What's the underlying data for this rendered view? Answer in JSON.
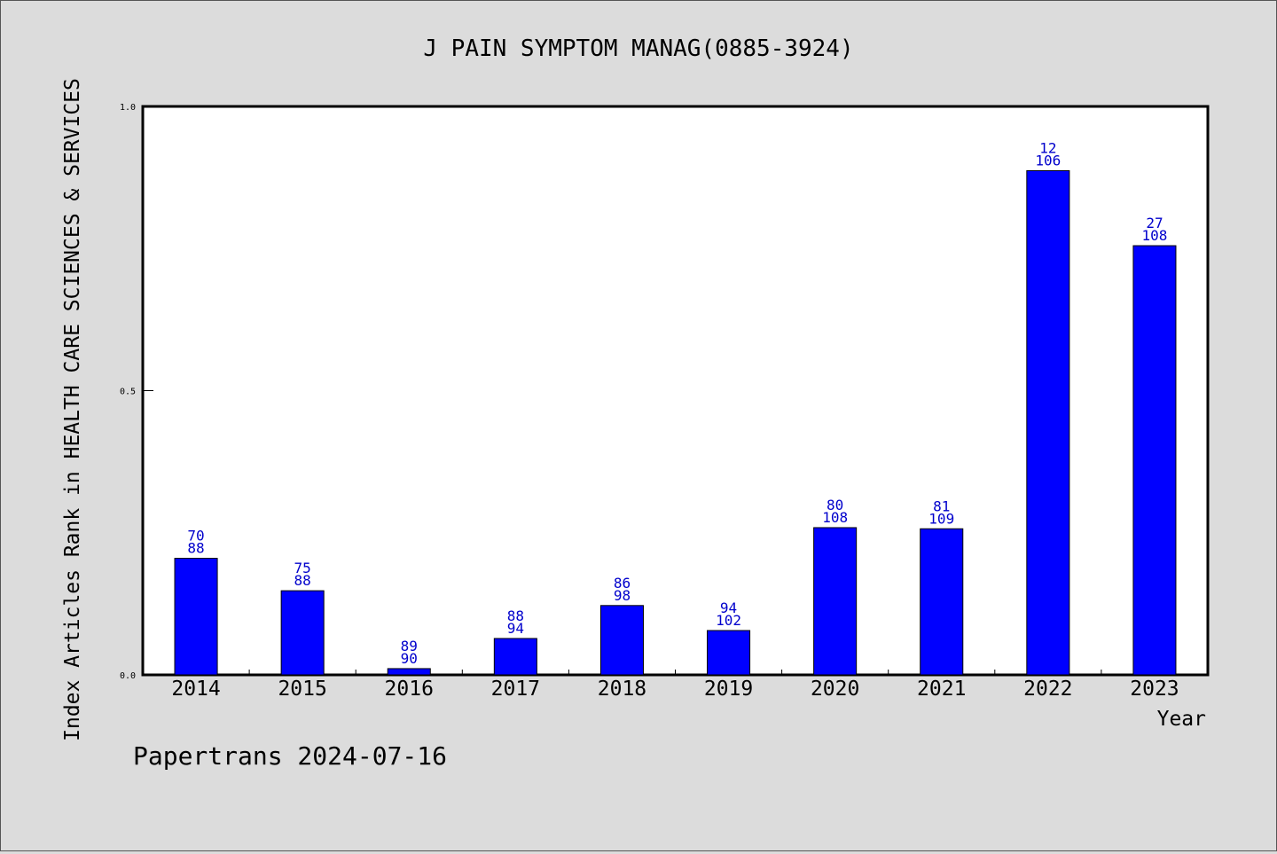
{
  "chart_data": {
    "type": "bar",
    "title": "J PAIN SYMPTOM MANAG(0885-3924)",
    "xlabel": "Year",
    "ylabel": "Index Articles Rank in HEALTH CARE SCIENCES & SERVICES",
    "ylim": [
      0,
      1
    ],
    "yticks": [
      "0.0",
      "0.5",
      "1.0"
    ],
    "grid": false,
    "categories": [
      "2014",
      "2015",
      "2016",
      "2017",
      "2018",
      "2019",
      "2020",
      "2021",
      "2022",
      "2023"
    ],
    "values": [
      0.205,
      0.148,
      0.011,
      0.064,
      0.122,
      0.078,
      0.259,
      0.257,
      0.887,
      0.755
    ],
    "labels_top": [
      "70",
      "75",
      "89",
      "88",
      "86",
      "94",
      "80",
      "81",
      "12",
      "27"
    ],
    "labels_bottom": [
      "88",
      "88",
      "90",
      "94",
      "98",
      "102",
      "108",
      "109",
      "106",
      "108"
    ],
    "bar_color": "#0000ff",
    "label_color": "#0000cc"
  },
  "footer": {
    "text": "Papertrans 2024-07-16"
  }
}
